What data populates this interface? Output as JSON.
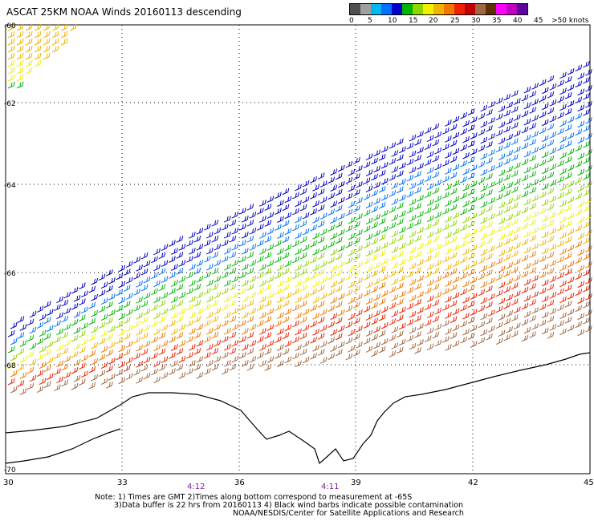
{
  "title": "ASCAT 25KM NOAA Winds 20160113 descending",
  "legend": {
    "colors": [
      "#505050",
      "#a0a0a0",
      "#00b8f0",
      "#0070ff",
      "#0000c8",
      "#00b400",
      "#90d400",
      "#f0f000",
      "#f0b400",
      "#f07800",
      "#f02000",
      "#c00000",
      "#a06840",
      "#603000",
      "#ff00ff",
      "#c000c0",
      "#6000a0"
    ],
    "labels": [
      "0",
      "5",
      "10",
      "15",
      "20",
      "25",
      "30",
      "35",
      "40",
      "45",
      ">50 knots"
    ]
  },
  "map": {
    "lat_labels": [
      "-60",
      "-62",
      "-64",
      "-66",
      "-68",
      "-70"
    ],
    "lon_labels": [
      "30",
      "33",
      "36",
      "39",
      "42",
      "45"
    ],
    "pass_times": [
      "4:12",
      "4:11"
    ]
  },
  "notes": {
    "line1": "Note: 1) Times are GMT 2)Times along bottom correspond to measurement at -65S",
    "line2": "3)Data buffer is 22 hrs from 20160113 4) Black wind barbs indicate possible contamination",
    "line3": "NOAA/NESDIS/Center for Satellite Applications and Research"
  }
}
